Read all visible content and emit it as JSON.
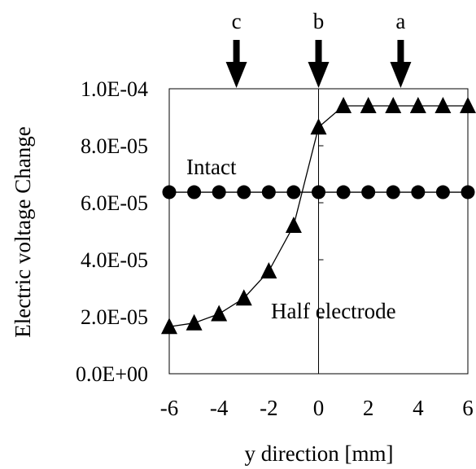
{
  "chart_data": {
    "type": "line",
    "title": "",
    "xlabel": "y direction [mm]",
    "ylabel": "Electric voltage Change",
    "xlim": [
      -6,
      6
    ],
    "ylim": [
      0,
      0.0001
    ],
    "x_ticks": [
      -6,
      -4,
      -2,
      0,
      2,
      4,
      6
    ],
    "x_tick_labels": [
      "-6",
      "-4",
      "-2",
      "0",
      "2",
      "4",
      "6"
    ],
    "y_ticks": [
      0,
      2e-05,
      4e-05,
      6e-05,
      8e-05,
      0.0001
    ],
    "y_tick_labels": [
      "0.0E+00",
      "2.0E-05",
      "4.0E-05",
      "6.0E-05",
      "8.0E-05",
      "1.0E-04"
    ],
    "grid": false,
    "legend": "none",
    "series": [
      {
        "name": "Intact",
        "marker": "circle",
        "color": "#000000",
        "x": [
          -6,
          -5,
          -4,
          -3,
          -2,
          -1,
          0,
          1,
          2,
          3,
          4,
          5,
          6
        ],
        "values": [
          6.37e-05,
          6.37e-05,
          6.37e-05,
          6.37e-05,
          6.37e-05,
          6.37e-05,
          6.37e-05,
          6.37e-05,
          6.37e-05,
          6.37e-05,
          6.37e-05,
          6.37e-05,
          6.37e-05
        ]
      },
      {
        "name": "Half electrode",
        "marker": "triangle",
        "color": "#000000",
        "x": [
          -6,
          -5,
          -4,
          -3,
          -2,
          -1,
          0,
          1,
          2,
          3,
          4,
          5,
          6
        ],
        "values": [
          1.65e-05,
          1.78e-05,
          2.1e-05,
          2.65e-05,
          3.6e-05,
          5.2e-05,
          8.65e-05,
          9.4e-05,
          9.4e-05,
          9.4e-05,
          9.4e-05,
          9.4e-05,
          9.4e-05
        ]
      }
    ],
    "annotations": [
      {
        "label": "c",
        "x": -3.3
      },
      {
        "label": "b",
        "x": 0
      },
      {
        "label": "a",
        "x": 3.3
      }
    ]
  }
}
